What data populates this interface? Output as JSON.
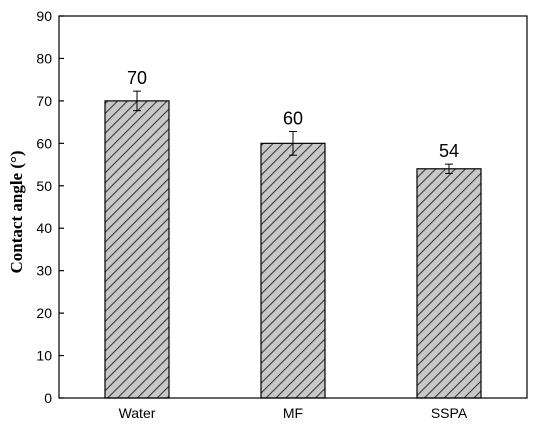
{
  "chart_data": {
    "type": "bar",
    "categories": [
      "Water",
      "MF",
      "SSPA"
    ],
    "values": [
      70,
      60,
      54
    ],
    "error": [
      2.3,
      2.8,
      1.1
    ],
    "data_labels": [
      "70",
      "60",
      "54"
    ],
    "title": "",
    "xlabel": "",
    "ylabel": "Contact angle (°)",
    "ylim": [
      0,
      90
    ],
    "yticks": [
      0,
      10,
      20,
      30,
      40,
      50,
      60,
      70,
      80,
      90
    ],
    "ytick_labels": [
      "0",
      "10",
      "20",
      "30",
      "40",
      "50",
      "60",
      "70",
      "80",
      "90"
    ],
    "grid": false,
    "legend": "none",
    "bar_fill": "hatched",
    "colors": {
      "bar_face": "#c8c8c8",
      "hatch": "#3a3a3a",
      "edge": "#000000",
      "axis": "#000000"
    }
  }
}
